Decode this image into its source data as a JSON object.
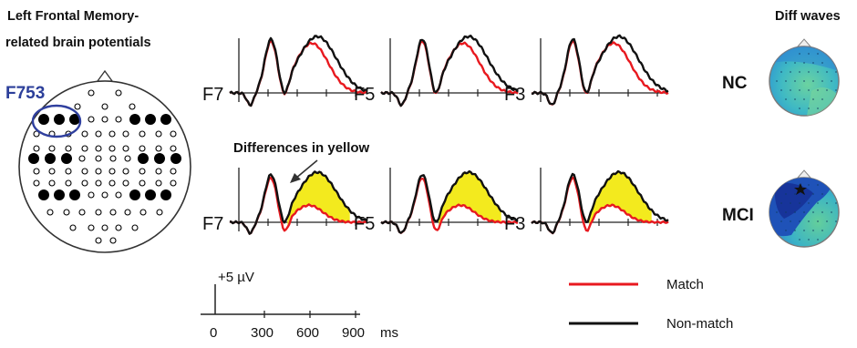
{
  "title_line1": "Left Frontal Memory-",
  "title_line2": "related brain potentials",
  "region_label": "F753",
  "diff_waves_title": "Diff waves",
  "annotation": "Differences in yellow",
  "groups": [
    "NC",
    "MCI"
  ],
  "channels": [
    "F7",
    "F5",
    "F3"
  ],
  "scale": {
    "amplitude_label": "+5 µV",
    "ticks": [
      "0",
      "300",
      "600",
      "900"
    ],
    "unit": "ms"
  },
  "legend": [
    {
      "label": "Match",
      "color": "#e8191f"
    },
    {
      "label": "Non-match",
      "color": "#111111"
    }
  ],
  "colors": {
    "match": "#e8191f",
    "nonmatch": "#111111",
    "difference_fill": "#f3ea1e",
    "region_ring": "#2f3f9e",
    "region_text": "#2c3f9a"
  }
}
